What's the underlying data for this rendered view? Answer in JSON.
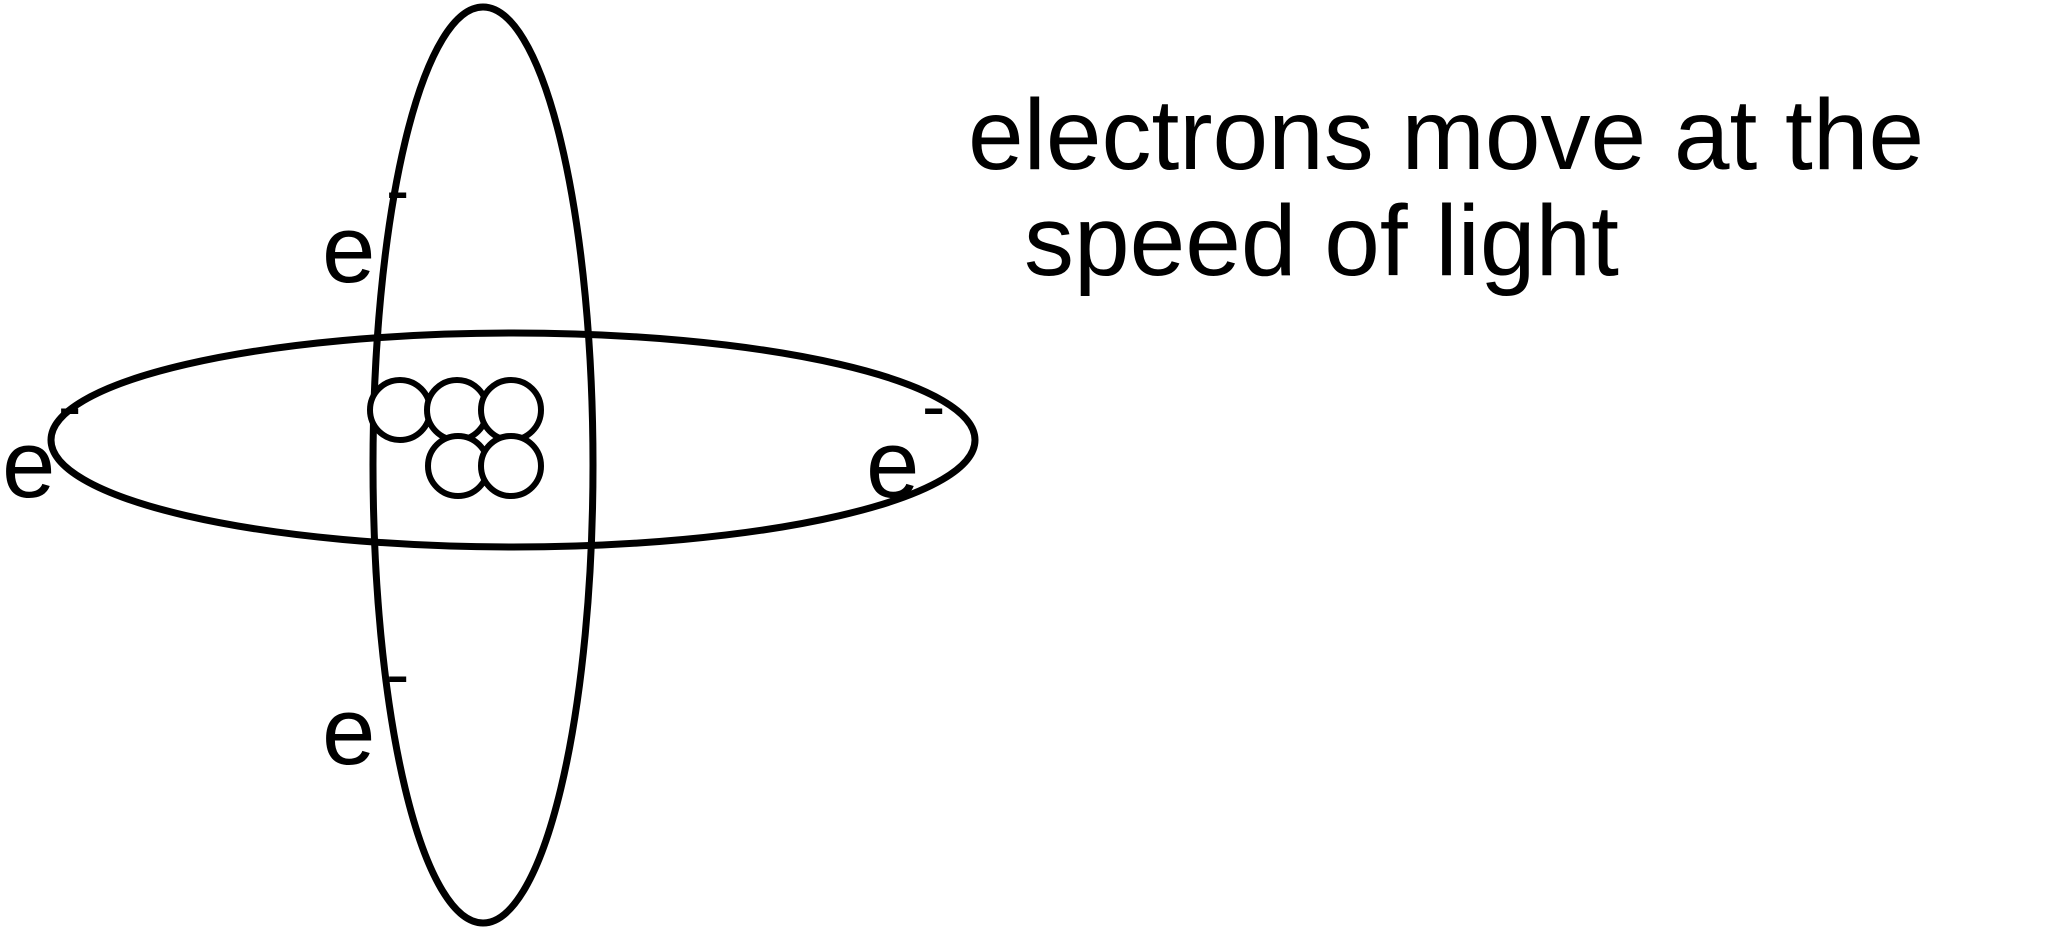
{
  "colors": {
    "background": "#ffffff",
    "ink": "#000000"
  },
  "electrons": [
    {
      "symbol": "e",
      "charge": "-"
    },
    {
      "symbol": "e",
      "charge": "-"
    },
    {
      "symbol": "e",
      "charge": "-"
    },
    {
      "symbol": "e",
      "charge": "-"
    }
  ],
  "nucleus": {
    "particle_count": 5
  },
  "caption": {
    "line1": "electrons move at the",
    "line2": "speed of light"
  }
}
